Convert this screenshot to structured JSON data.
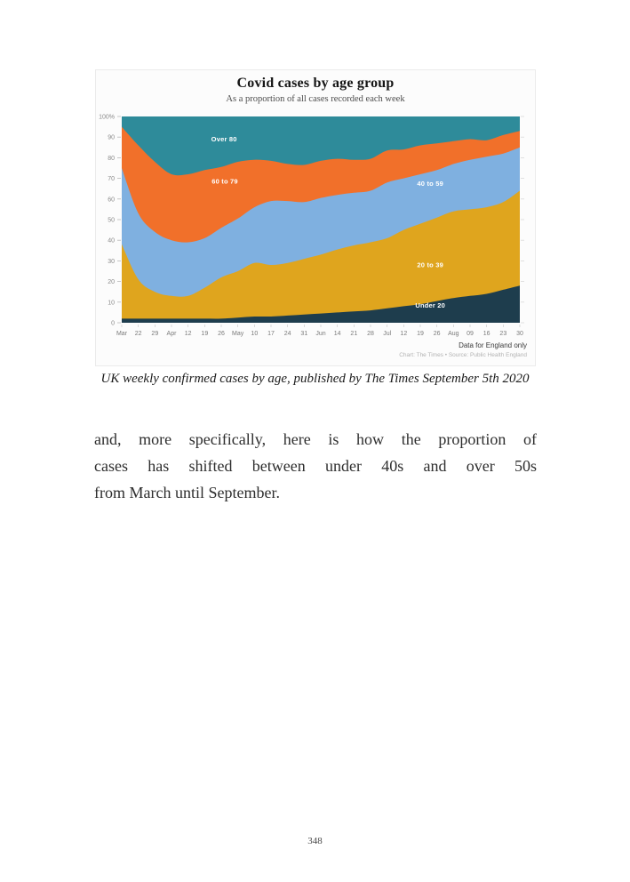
{
  "figure": {
    "title": "Covid cases by age group",
    "subtitle": "As a proportion of all cases recorded each week",
    "note": "Data for England only",
    "credit": "Chart: The Times • Source: Public Health England"
  },
  "chart_data": {
    "type": "area",
    "stacked": "percent",
    "title": "Covid cases by age group",
    "subtitle": "As a proportion of all cases recorded each week",
    "grid": false,
    "legend_position": "labels-inside-areas",
    "ylim": [
      0,
      100
    ],
    "y_tick_labels": [
      "0",
      "10",
      "20",
      "30",
      "40",
      "50",
      "60",
      "70",
      "80",
      "90",
      "100%"
    ],
    "x_tick_labels": [
      "Mar",
      "22",
      "29",
      "Apr",
      "12",
      "19",
      "26",
      "May",
      "10",
      "17",
      "24",
      "31",
      "Jun",
      "14",
      "21",
      "28",
      "Jul",
      "12",
      "19",
      "26",
      "Aug",
      "09",
      "16",
      "23",
      "30"
    ],
    "series": [
      {
        "name": "Under 20",
        "color": "#1e3d4d",
        "values": [
          2,
          2,
          2,
          2,
          2,
          2,
          2,
          2.5,
          3,
          3,
          3.5,
          4,
          4.5,
          5,
          5.5,
          6,
          7,
          8,
          9,
          10.5,
          12,
          13,
          14,
          16,
          18
        ]
      },
      {
        "name": "20 to 39",
        "color": "#dfa51e",
        "values": [
          36,
          19,
          13,
          11,
          11,
          15,
          20,
          22.5,
          26,
          25,
          25.5,
          27,
          28.5,
          30.5,
          32,
          33,
          34,
          37,
          39,
          40.5,
          42,
          42,
          42,
          42.5,
          46
        ]
      },
      {
        "name": "40 to 59",
        "color": "#7fb0e0",
        "values": [
          37,
          32,
          29,
          27,
          26,
          24,
          24,
          25.5,
          27,
          31,
          30,
          27.5,
          27.5,
          26.5,
          25.5,
          25,
          27,
          25,
          24,
          23,
          23,
          24,
          24.5,
          23.5,
          21
        ]
      },
      {
        "name": "60 to 79",
        "color": "#f1702a",
        "values": [
          20,
          33,
          34,
          32,
          33,
          33,
          29.5,
          27.5,
          23,
          19.5,
          18,
          18,
          18,
          17.5,
          16,
          15.5,
          15.5,
          14,
          14,
          13,
          11,
          10,
          8,
          9,
          8
        ]
      },
      {
        "name": "Over 80",
        "color": "#2e8b9a",
        "values": [
          5,
          14,
          22,
          28,
          28,
          26,
          24.5,
          22,
          21,
          21.5,
          23,
          23.5,
          21.5,
          20.5,
          21,
          20.5,
          16.5,
          16,
          14,
          13,
          12,
          11,
          11.5,
          9,
          7
        ]
      }
    ],
    "area_labels": [
      {
        "text": "Over 80",
        "fx": 0.257,
        "fy": 89
      },
      {
        "text": "60 to 79",
        "fx": 0.259,
        "fy": 68.5
      },
      {
        "text": "40 to 59",
        "fx": 0.775,
        "fy": 67.5
      },
      {
        "text": "20 to 39",
        "fx": 0.775,
        "fy": 28
      },
      {
        "text": "Under 20",
        "fx": 0.775,
        "fy": 8.5
      }
    ],
    "notes": [
      "Data for England only",
      "Chart: The Times • Source: Public Health England"
    ]
  },
  "caption": "UK weekly confirmed cases by age, published by The Times September 5th 2020",
  "paragraph_lines": [
    "and, more specifically, here is how the proportion of",
    "cases has shifted between under 40s and over 50s",
    "from March until September."
  ],
  "page_number": "348"
}
